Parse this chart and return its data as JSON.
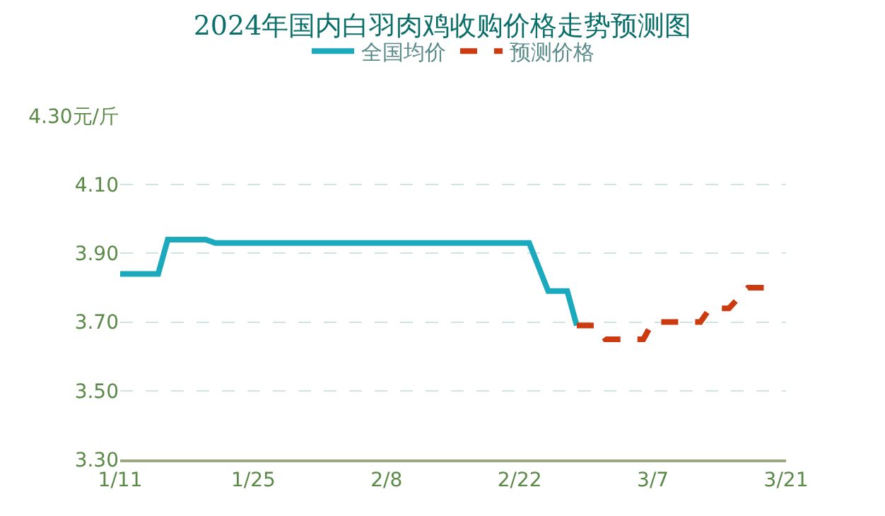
{
  "chart_data": {
    "type": "line",
    "title": "2024年国内白羽肉鸡收购价格走势预测图",
    "series": [
      {
        "name": "全国均价",
        "color": "#1ba9bd",
        "line_style": "solid",
        "x": [
          "2024-01-11",
          "2024-01-15",
          "2024-01-16",
          "2024-01-20",
          "2024-01-21",
          "2024-02-23",
          "2024-02-25",
          "2024-02-27",
          "2024-02-28"
        ],
        "values": [
          3.84,
          3.84,
          3.94,
          3.94,
          3.93,
          3.93,
          3.79,
          3.79,
          3.69
        ]
      },
      {
        "name": "预测价格",
        "color": "#cc3a10",
        "line_style": "dashed",
        "x": [
          "2024-02-28",
          "2024-03-01",
          "2024-03-02",
          "2024-03-06",
          "2024-03-07",
          "2024-03-12",
          "2024-03-13",
          "2024-03-15",
          "2024-03-17",
          "2024-03-19"
        ],
        "values": [
          3.69,
          3.69,
          3.65,
          3.65,
          3.7,
          3.7,
          3.74,
          3.74,
          3.8,
          3.8
        ]
      }
    ],
    "xlim": [
      "2024-01-11",
      "2024-03-21"
    ],
    "xticks": [
      {
        "value": "2024-01-11",
        "label": "1/11"
      },
      {
        "value": "2024-01-25",
        "label": "1/25"
      },
      {
        "value": "2024-02-08",
        "label": "2/8"
      },
      {
        "value": "2024-02-22",
        "label": "2/22"
      },
      {
        "value": "2024-03-07",
        "label": "3/7"
      },
      {
        "value": "2024-03-21",
        "label": "3/21"
      }
    ],
    "ylim": [
      3.3,
      4.3
    ],
    "yticks": [
      {
        "value": 3.3,
        "label": "3.30"
      },
      {
        "value": 3.5,
        "label": "3.50"
      },
      {
        "value": 3.7,
        "label": "3.70"
      },
      {
        "value": 3.9,
        "label": "3.90"
      },
      {
        "value": 4.1,
        "label": "4.10"
      },
      {
        "value": 4.3,
        "label": "4.30元/斤"
      }
    ],
    "grid": "y",
    "legend": "top",
    "marker": "none"
  }
}
